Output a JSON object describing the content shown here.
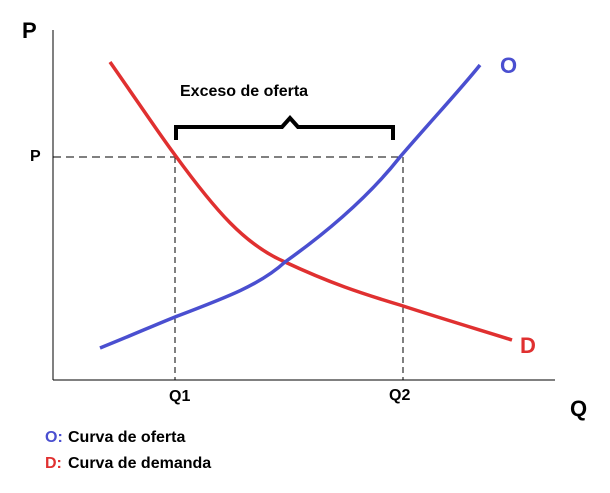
{
  "diagram": {
    "axes": {
      "y_label": "P",
      "x_label": "Q"
    },
    "curves": {
      "supply": "O",
      "demand": "D"
    },
    "annotation": "Exceso de oferta",
    "levels": {
      "price": "P",
      "q1": "Q1",
      "q2": "Q2"
    },
    "legend": [
      {
        "key": "O:",
        "text": "Curva de oferta"
      },
      {
        "key": "D:",
        "text": "Curva de demanda"
      }
    ]
  }
}
